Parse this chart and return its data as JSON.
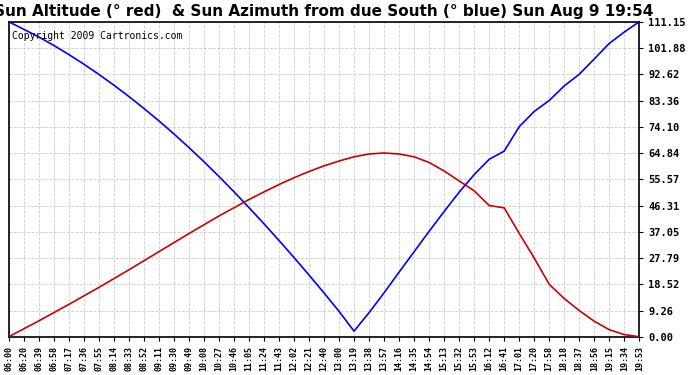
{
  "title": "Sun Altitude (° red)  & Sun Azimuth from due South (° blue) Sun Aug 9 19:54",
  "copyright": "Copyright 2009 Cartronics.com",
  "yticks": [
    0.0,
    9.26,
    18.52,
    27.79,
    37.05,
    46.31,
    55.57,
    64.84,
    74.1,
    83.36,
    92.62,
    101.88,
    111.15
  ],
  "ylim": [
    0.0,
    111.15
  ],
  "xtick_labels": [
    "06:00",
    "06:20",
    "06:39",
    "06:58",
    "07:17",
    "07:36",
    "07:55",
    "08:14",
    "08:33",
    "08:52",
    "09:11",
    "09:30",
    "09:49",
    "10:08",
    "10:27",
    "10:46",
    "11:05",
    "11:24",
    "11:43",
    "12:02",
    "12:21",
    "12:40",
    "13:00",
    "13:19",
    "13:38",
    "13:57",
    "14:16",
    "14:35",
    "14:54",
    "15:13",
    "15:32",
    "15:53",
    "16:12",
    "16:41",
    "17:01",
    "17:20",
    "17:58",
    "18:18",
    "18:37",
    "18:56",
    "19:15",
    "19:34",
    "19:53"
  ],
  "blue_y": [
    111.15,
    108.5,
    105.8,
    102.8,
    99.6,
    96.2,
    92.6,
    88.8,
    84.8,
    80.6,
    76.2,
    71.6,
    66.8,
    61.8,
    56.6,
    51.2,
    45.6,
    39.9,
    34.0,
    28.0,
    21.8,
    15.5,
    9.0,
    2.0,
    8.5,
    15.5,
    22.8,
    30.0,
    37.2,
    44.2,
    51.0,
    57.2,
    62.6,
    65.5,
    74.1,
    79.5,
    83.36,
    88.5,
    92.62,
    98.0,
    103.5,
    107.5,
    111.15
  ],
  "red_y": [
    0.0,
    2.8,
    5.6,
    8.5,
    11.4,
    14.4,
    17.4,
    20.5,
    23.6,
    26.8,
    30.0,
    33.2,
    36.4,
    39.5,
    42.6,
    45.5,
    48.4,
    51.1,
    53.7,
    56.1,
    58.3,
    60.3,
    62.0,
    63.5,
    64.5,
    64.84,
    64.5,
    63.5,
    61.5,
    58.5,
    55.0,
    51.5,
    46.31,
    45.5,
    36.5,
    27.79,
    18.52,
    13.5,
    9.26,
    5.5,
    2.5,
    0.8,
    0.0
  ],
  "grid_color": "#cccccc",
  "bg_color": "#ffffff",
  "blue_color": "#0000ff",
  "red_color": "#cc0000",
  "title_fontsize": 11,
  "copyright_fontsize": 7
}
